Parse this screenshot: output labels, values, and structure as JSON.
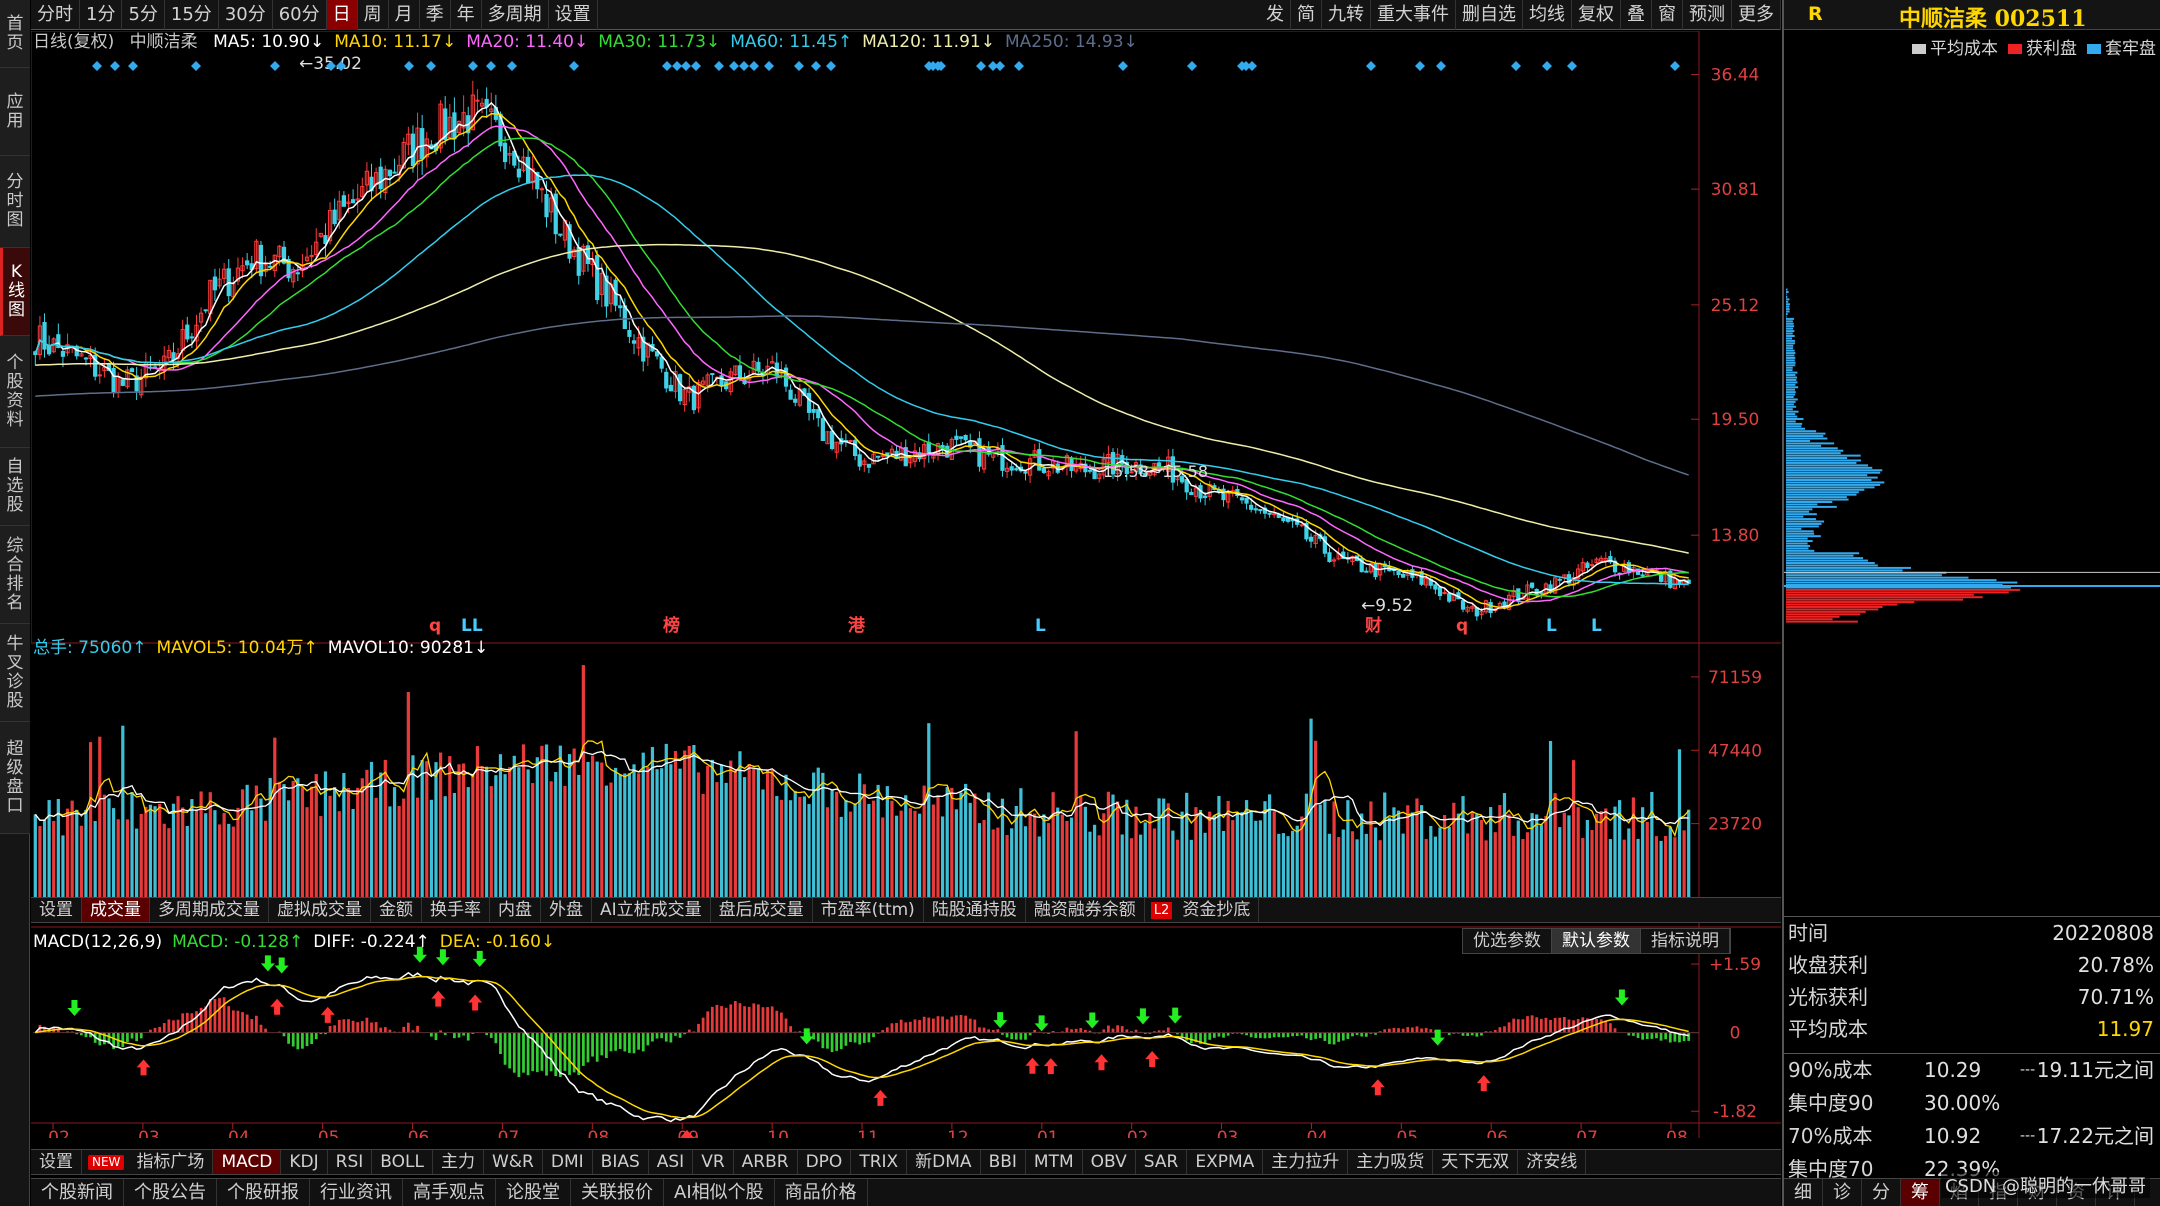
{
  "sidebar": {
    "tabs": [
      {
        "label": "首页",
        "active": false
      },
      {
        "label": "应用",
        "active": false
      },
      {
        "label": "分时图",
        "active": false
      },
      {
        "label": "K线图",
        "active": true
      },
      {
        "label": "个股资料",
        "active": false
      },
      {
        "label": "自选股",
        "active": false
      },
      {
        "label": "综合排名",
        "active": false
      },
      {
        "label": "牛叉诊股",
        "active": false
      },
      {
        "label": "超级盘口",
        "active": false
      }
    ]
  },
  "toolbar": {
    "periods": [
      "分时",
      "1分",
      "5分",
      "15分",
      "30分",
      "60分",
      "日",
      "周",
      "月",
      "季",
      "年",
      "多周期",
      "设置"
    ],
    "active_period": "日",
    "tools": [
      "发",
      "简",
      "九转",
      "重大事件",
      "删自选",
      "均线",
      "复权",
      "叠",
      "窗",
      "预测",
      "更多"
    ]
  },
  "price_legend": {
    "mode": "日线(复权)",
    "stock": "中顺洁柔",
    "items": [
      {
        "text": "MA5: 10.90↓",
        "color": "#ffffff"
      },
      {
        "text": "MA10: 11.17↓",
        "color": "#ffd700"
      },
      {
        "text": "MA20: 11.40↓",
        "color": "#ff66ff"
      },
      {
        "text": "MA30: 11.73↓",
        "color": "#33dd33"
      },
      {
        "text": "MA60: 11.45↑",
        "color": "#33ccee"
      },
      {
        "text": "MA120: 11.91↓",
        "color": "#eeeeaa"
      },
      {
        "text": "MA250: 14.93↓",
        "color": "#5d6d8a"
      }
    ]
  },
  "vol_legend": {
    "items": [
      {
        "text": "总手: 75060↑",
        "color": "#33ccee"
      },
      {
        "text": "MAVOL5: 10.04万↑",
        "color": "#ffd700"
      },
      {
        "text": "MAVOL10: 90281↓",
        "color": "#ffffff"
      }
    ]
  },
  "macd_legend": {
    "items": [
      {
        "text": "MACD(12,26,9)",
        "color": "#ffffff"
      },
      {
        "text": "MACD: -0.128↑",
        "color": "#33dd33"
      },
      {
        "text": "DIFF: -0.224↑",
        "color": "#ffffff"
      },
      {
        "text": "DEA: -0.160↓",
        "color": "#ffd700"
      }
    ]
  },
  "macd_buttons": [
    "优选参数",
    "默认参数",
    "指标说明"
  ],
  "mid_tabs": {
    "items": [
      "设置",
      "成交量",
      "多周期成交量",
      "虚拟成交量",
      "金额",
      "换手率",
      "内盘",
      "外盘",
      "AI立桩成交量",
      "盘后成交量",
      "市盈率(ttm)",
      "陆股通持股",
      "融资融券余额",
      "资金抄底"
    ],
    "active": "成交量",
    "l2_tag": "L2"
  },
  "indicator_tabs": {
    "items": [
      "设置",
      "指标广场",
      "MACD",
      "KDJ",
      "RSI",
      "BOLL",
      "主力",
      "W&R",
      "DMI",
      "BIAS",
      "ASI",
      "VR",
      "ARBR",
      "DPO",
      "TRIX",
      "新DMA",
      "BBI",
      "MTM",
      "OBV",
      "SAR",
      "EXPMA",
      "主力拉升",
      "主力吸货",
      "天下无双",
      "济安线"
    ],
    "active": "MACD",
    "new_tag": "NEW"
  },
  "news_tabs": [
    "个股新闻",
    "个股公告",
    "个股研报",
    "行业资讯",
    "高手观点",
    "论股堂",
    "关联报价",
    "AI相似个股",
    "商品价格"
  ],
  "right_panel": {
    "header_letter": "R",
    "title": "中顺洁柔 002511",
    "legend": [
      {
        "label": "平均成本",
        "color": "#cccccc"
      },
      {
        "label": "获利盘",
        "color": "#ee2222"
      },
      {
        "label": "套牢盘",
        "color": "#33aaee"
      }
    ],
    "rows": [
      {
        "k": "时间",
        "v": "20220808"
      },
      {
        "k": "收盘获利",
        "v": "20.78%"
      },
      {
        "k": "光标获利",
        "v": "70.71%"
      },
      {
        "k": "平均成本",
        "v": "11.97"
      }
    ],
    "cost_rows": [
      {
        "k": "90%成本",
        "a": "10.29",
        "b": "---",
        "c": "19.11元之间"
      },
      {
        "k": "集中度90",
        "a": "30.00%",
        "b": "",
        "c": ""
      },
      {
        "k": "70%成本",
        "a": "10.92",
        "b": "---",
        "c": "17.22元之间"
      },
      {
        "k": "集中度70",
        "a": "22.39%",
        "b": "",
        "c": ""
      }
    ],
    "bottom_tabs": [
      "细",
      "诊",
      "分",
      "筹",
      "焰",
      "指",
      "财",
      "资",
      "评"
    ],
    "watermark": "CSDN @聪明的一休哥哥"
  },
  "chart_data": [
    {
      "type": "candlestick",
      "title": "中顺洁柔 日线(复权)",
      "y_ticks": [
        36.44,
        30.81,
        25.12,
        19.5,
        13.8
      ],
      "ylim": [
        8.5,
        37.5
      ],
      "x_ticks": [
        "02",
        "03",
        "04",
        "05",
        "06",
        "07",
        "08",
        "09",
        "10",
        "11",
        "12",
        "01",
        "02",
        "03",
        "04",
        "05",
        "06",
        "07",
        "08"
      ],
      "annotations": [
        {
          "text": "35.02",
          "kind": "high"
        },
        {
          "text": "9.52",
          "kind": "low"
        },
        {
          "text": "15.58~15.58",
          "kind": "gap"
        }
      ],
      "event_markers": [
        "q",
        "LL",
        "榜",
        "港",
        "L",
        "财",
        "q",
        "L",
        "L"
      ],
      "close_path": [
        23.5,
        22.5,
        21.2,
        22.0,
        25.5,
        27.5,
        27.0,
        29.5,
        31.5,
        33.5,
        34.5,
        33.0,
        29.0,
        26.0,
        23.0,
        20.5,
        21.5,
        22.0,
        19.0,
        17.5,
        17.8,
        18.2,
        17.6,
        17.4,
        17.0,
        17.3,
        17.1,
        15.8,
        15.2,
        14.0,
        12.5,
        12.0,
        11.5,
        10.0,
        10.8,
        11.5,
        12.5,
        12.0,
        11.3
      ],
      "ma": [
        {
          "name": "MA5",
          "last": 10.9
        },
        {
          "name": "MA10",
          "last": 11.17
        },
        {
          "name": "MA20",
          "last": 11.4
        },
        {
          "name": "MA30",
          "last": 11.73
        },
        {
          "name": "MA60",
          "last": 11.45
        },
        {
          "name": "MA120",
          "last": 11.91
        },
        {
          "name": "MA250",
          "last": 14.93
        }
      ]
    },
    {
      "type": "bar",
      "title": "成交量",
      "y_ticks": [
        71159,
        47440,
        23720
      ],
      "y_unit": "X10",
      "ylim": [
        0,
        75000
      ]
    },
    {
      "type": "bar",
      "title": "MACD(12,26,9)",
      "y_ticks": [
        1.59,
        0,
        -1.82
      ],
      "ylim": [
        -2.0,
        1.8
      ]
    }
  ]
}
